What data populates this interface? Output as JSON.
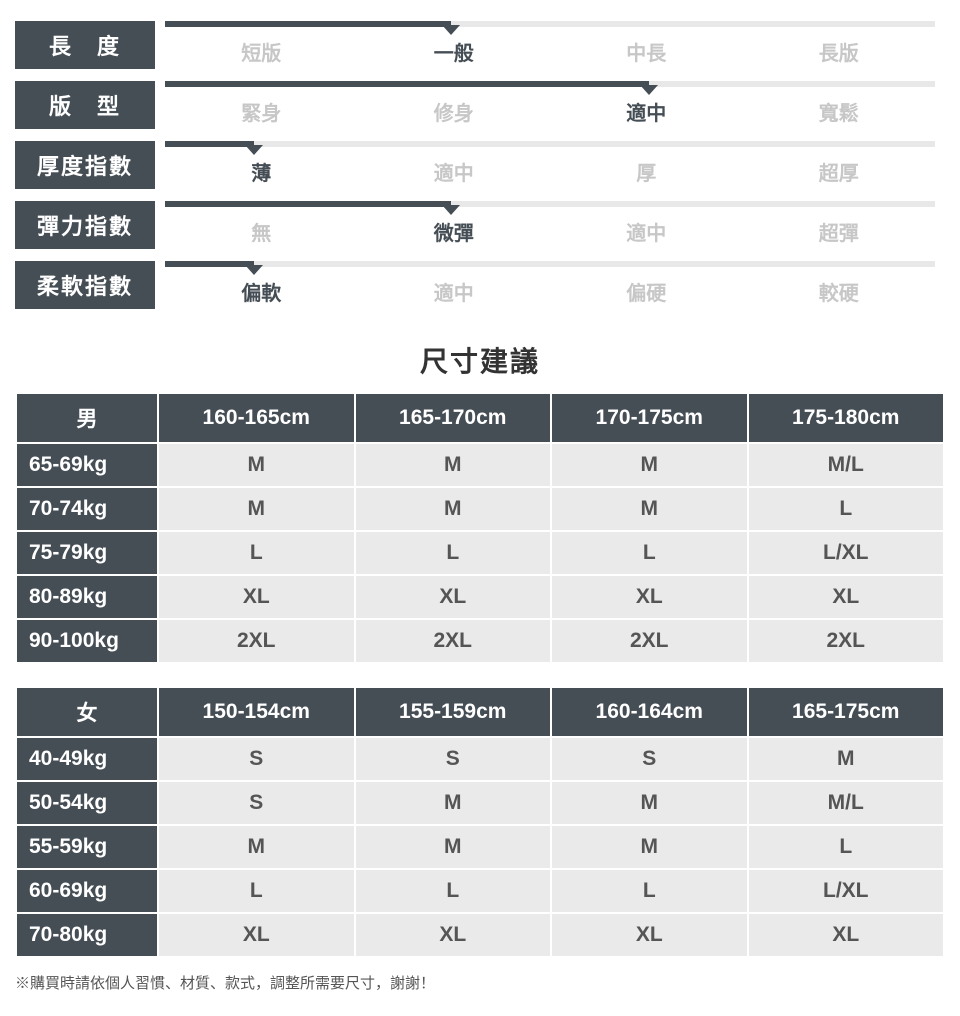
{
  "attributes": [
    {
      "label": "長　度",
      "options": [
        "短版",
        "一般",
        "中長",
        "長版"
      ],
      "selected": 1
    },
    {
      "label": "版　型",
      "options": [
        "緊身",
        "修身",
        "適中",
        "寬鬆"
      ],
      "selected": 2
    },
    {
      "label": "厚度指數",
      "options": [
        "薄",
        "適中",
        "厚",
        "超厚"
      ],
      "selected": 0
    },
    {
      "label": "彈力指數",
      "options": [
        "無",
        "微彈",
        "適中",
        "超彈"
      ],
      "selected": 1
    },
    {
      "label": "柔軟指數",
      "options": [
        "偏軟",
        "適中",
        "偏硬",
        "較硬"
      ],
      "selected": 0
    }
  ],
  "size_title": "尺寸建議",
  "tables": [
    {
      "header": [
        "男",
        "160-165cm",
        "165-170cm",
        "170-175cm",
        "175-180cm"
      ],
      "rows": [
        [
          "65-69kg",
          "M",
          "M",
          "M",
          "M/L"
        ],
        [
          "70-74kg",
          "M",
          "M",
          "M",
          "L"
        ],
        [
          "75-79kg",
          "L",
          "L",
          "L",
          "L/XL"
        ],
        [
          "80-89kg",
          "XL",
          "XL",
          "XL",
          "XL"
        ],
        [
          "90-100kg",
          "2XL",
          "2XL",
          "2XL",
          "2XL"
        ]
      ]
    },
    {
      "header": [
        "女",
        "150-154cm",
        "155-159cm",
        "160-164cm",
        "165-175cm"
      ],
      "rows": [
        [
          "40-49kg",
          "S",
          "S",
          "S",
          "M"
        ],
        [
          "50-54kg",
          "S",
          "M",
          "M",
          "M/L"
        ],
        [
          "55-59kg",
          "M",
          "M",
          "M",
          "L"
        ],
        [
          "60-69kg",
          "L",
          "L",
          "L",
          "L/XL"
        ],
        [
          "70-80kg",
          "XL",
          "XL",
          "XL",
          "XL"
        ]
      ]
    }
  ],
  "footnote": "※購買時請依個人習慣、材質、款式，調整所需要尺寸，謝謝！",
  "colors": {
    "header_bg": "#454d55",
    "header_text": "#ffffff",
    "cell_bg": "#eaeaea",
    "cell_text": "#555555",
    "inactive_text": "#c7c7c7",
    "bar_bg": "#e8e8e8"
  }
}
